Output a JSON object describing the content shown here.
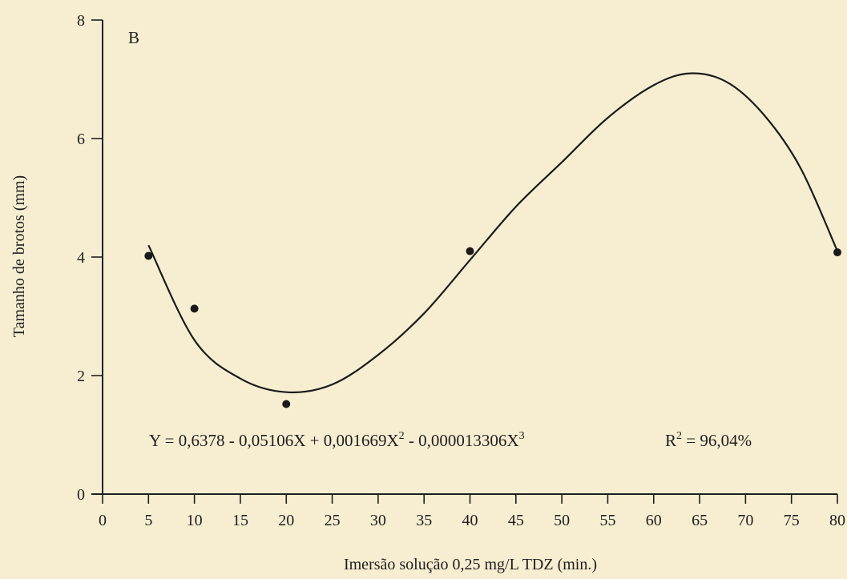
{
  "chart_data": {
    "type": "scatter",
    "panel_label": "B",
    "xlabel": "Imersão solução 0,25 mg/L TDZ (min.)",
    "ylabel": "Tamanho de brotos (mm)",
    "xlim": [
      0,
      80
    ],
    "ylim": [
      0,
      8
    ],
    "x_ticks": [
      0,
      5,
      10,
      15,
      20,
      25,
      30,
      35,
      40,
      45,
      50,
      55,
      60,
      65,
      70,
      75,
      80
    ],
    "y_ticks": [
      0,
      2,
      4,
      6,
      8
    ],
    "grid": false,
    "legend": "none",
    "series": [
      {
        "points": [
          {
            "x": 5,
            "y": 4.02
          },
          {
            "x": 10,
            "y": 3.13
          },
          {
            "x": 20,
            "y": 1.52
          },
          {
            "x": 40,
            "y": 4.1
          },
          {
            "x": 80,
            "y": 4.08
          }
        ]
      }
    ],
    "fit": {
      "type": "cubic",
      "x_range": [
        5,
        80
      ],
      "curve_points": [
        {
          "x": 5,
          "y": 4.2
        },
        {
          "x": 10,
          "y": 2.6
        },
        {
          "x": 15,
          "y": 1.95
        },
        {
          "x": 20,
          "y": 1.72
        },
        {
          "x": 25,
          "y": 1.85
        },
        {
          "x": 30,
          "y": 2.35
        },
        {
          "x": 35,
          "y": 3.05
        },
        {
          "x": 40,
          "y": 3.95
        },
        {
          "x": 45,
          "y": 4.85
        },
        {
          "x": 50,
          "y": 5.6
        },
        {
          "x": 55,
          "y": 6.35
        },
        {
          "x": 60,
          "y": 6.9
        },
        {
          "x": 64,
          "y": 7.1
        },
        {
          "x": 68,
          "y": 6.95
        },
        {
          "x": 72,
          "y": 6.4
        },
        {
          "x": 76,
          "y": 5.5
        },
        {
          "x": 80,
          "y": 4.1
        }
      ]
    },
    "annotations": {
      "equation": {
        "prefix": "Y = 0,6378 - 0,05106X + 0,001669X",
        "sup1": "2",
        "middle": " - 0,000013306X",
        "sup2": "3"
      },
      "r_squared": {
        "prefix": "R",
        "sup": "2",
        "suffix": " = 96,04%"
      }
    }
  }
}
